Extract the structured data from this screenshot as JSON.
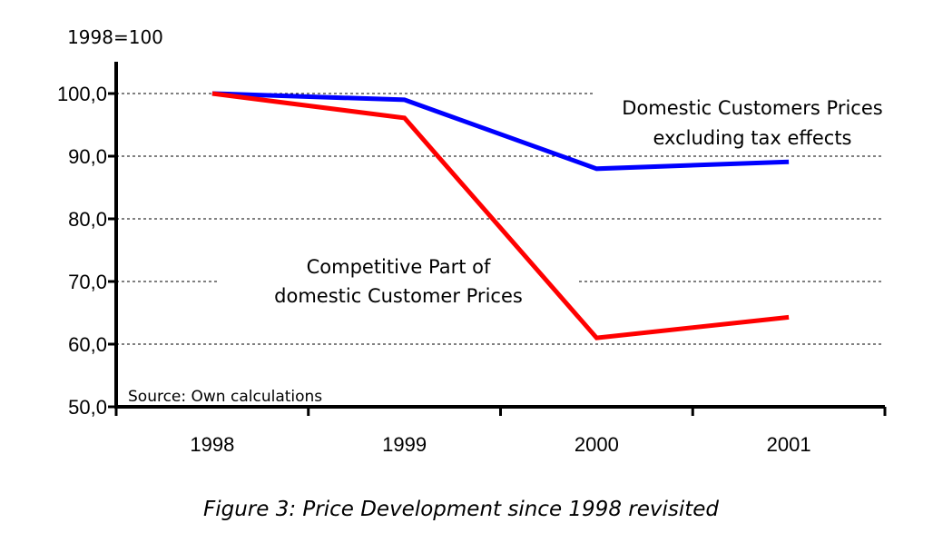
{
  "chart_data": {
    "type": "line",
    "title": "",
    "caption": "Figure 3: Price Development since 1998 revisited",
    "unit_label": "1998=100",
    "xlabel": "",
    "ylabel": "1998=100",
    "categories": [
      "1998",
      "1999",
      "2000",
      "2001"
    ],
    "ylim": [
      50,
      100
    ],
    "yticks": [
      50,
      60,
      70,
      80,
      90,
      100
    ],
    "ytick_labels": [
      "50,0",
      "60,0",
      "70,0",
      "80,0",
      "90,0",
      "100,0"
    ],
    "grid": true,
    "series": [
      {
        "name": "Domestic Customers Prices excluding tax effects",
        "label_lines": [
          "Domestic Customers Prices",
          "excluding tax effects"
        ],
        "color": "#0000ff",
        "values": [
          100.0,
          99.0,
          88.0,
          89.1
        ]
      },
      {
        "name": "Competitive Part of domestic Customer Prices",
        "label_lines": [
          "Competitive Part of",
          "domestic Customer Prices"
        ],
        "color": "#ff0000",
        "values": [
          100.0,
          96.1,
          61.0,
          64.3
        ]
      }
    ],
    "source_note": "Source: Own calculations"
  }
}
